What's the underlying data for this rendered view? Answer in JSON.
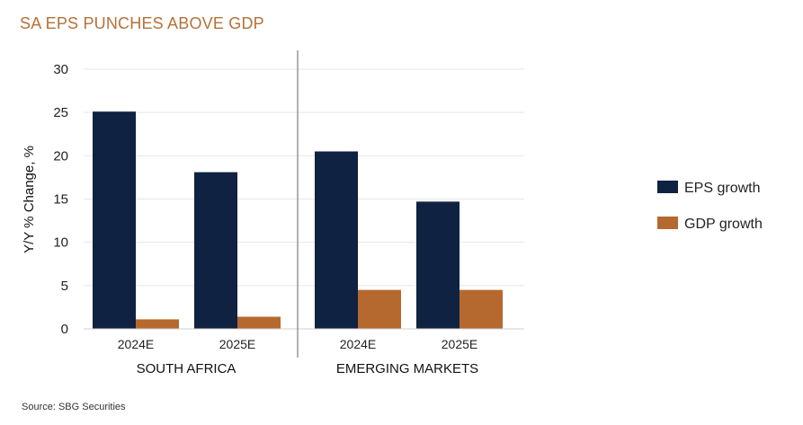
{
  "title": "SA EPS PUNCHES ABOVE GDP",
  "source": "Source: SBG Securities",
  "colors": {
    "eps": "#0f2242",
    "gdp": "#b5692f",
    "grid": "#e6e6e6",
    "title": "#b5713a"
  },
  "chart_data": {
    "type": "bar",
    "title": "SA EPS PUNCHES ABOVE GDP",
    "ylabel": "Y/Y % Change, %",
    "xlabel": "",
    "ylim": [
      0,
      30
    ],
    "yticks": [
      0,
      5,
      10,
      15,
      20,
      25,
      30
    ],
    "grid": true,
    "legend": "right",
    "groups": [
      {
        "name": "SOUTH AFRICA",
        "categories": [
          "2024E",
          "2025E"
        ]
      },
      {
        "name": "EMERGING MARKETS",
        "categories": [
          "2024E",
          "2025E"
        ]
      }
    ],
    "categories": [
      "2024E",
      "2025E",
      "2024E",
      "2025E"
    ],
    "series": [
      {
        "name": "EPS growth",
        "values": [
          25.1,
          18.1,
          20.5,
          14.7
        ]
      },
      {
        "name": "GDP growth",
        "values": [
          1.1,
          1.4,
          4.5,
          4.5
        ]
      }
    ]
  }
}
